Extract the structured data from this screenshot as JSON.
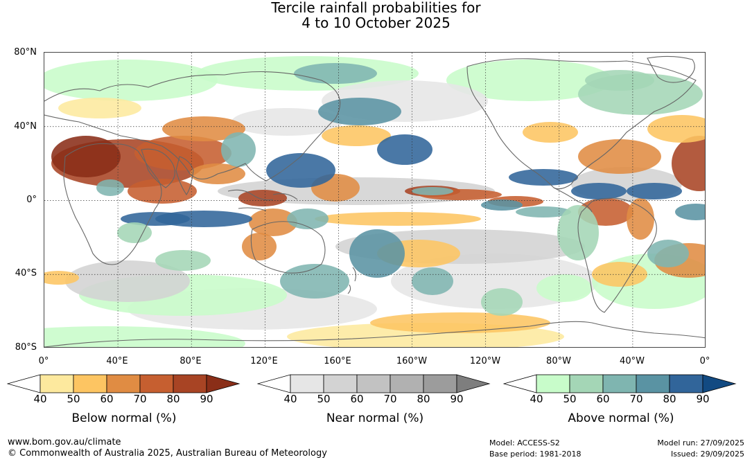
{
  "title_line1": "Tercile rainfall probabilities for",
  "title_line2": "4 to 10 October 2025",
  "map": {
    "lat_labels": [
      "80°N",
      "40°N",
      "0°",
      "40°S",
      "80°S"
    ],
    "lon_labels": [
      "0°",
      "40°E",
      "80°E",
      "120°E",
      "160°E",
      "160°W",
      "120°W",
      "80°W",
      "40°W",
      "0°"
    ]
  },
  "colorbars": [
    {
      "title": "Below normal (%)",
      "ticks": [
        "40",
        "50",
        "60",
        "70",
        "80",
        "90"
      ],
      "colors": [
        "#ffffff",
        "#fde99e",
        "#fdc562",
        "#e08c43",
        "#c65f30",
        "#a84424",
        "#8a2e18"
      ]
    },
    {
      "title": "Near normal (%)",
      "ticks": [
        "40",
        "50",
        "60",
        "70",
        "80",
        "90"
      ],
      "colors": [
        "#ffffff",
        "#e6e6e6",
        "#d3d3d3",
        "#c2c2c2",
        "#b1b1b1",
        "#9c9c9c",
        "#7e7e7e"
      ]
    },
    {
      "title": "Above normal (%)",
      "ticks": [
        "40",
        "50",
        "60",
        "70",
        "80",
        "90"
      ],
      "colors": [
        "#ffffff",
        "#c8fcca",
        "#a4d6b6",
        "#7fb5b0",
        "#5a93a3",
        "#31659a",
        "#124a82"
      ]
    }
  ],
  "footer": {
    "url": "www.bom.gov.au/climate",
    "copyright": "© Commonwealth of Australia 2025, Australian Bureau of Meteorology",
    "model": "Model: ACCESS-S2",
    "base_period": "Base period: 1981-2018",
    "model_run": "Model run: 27/09/2025",
    "issued": "Issued: 29/09/2025"
  }
}
